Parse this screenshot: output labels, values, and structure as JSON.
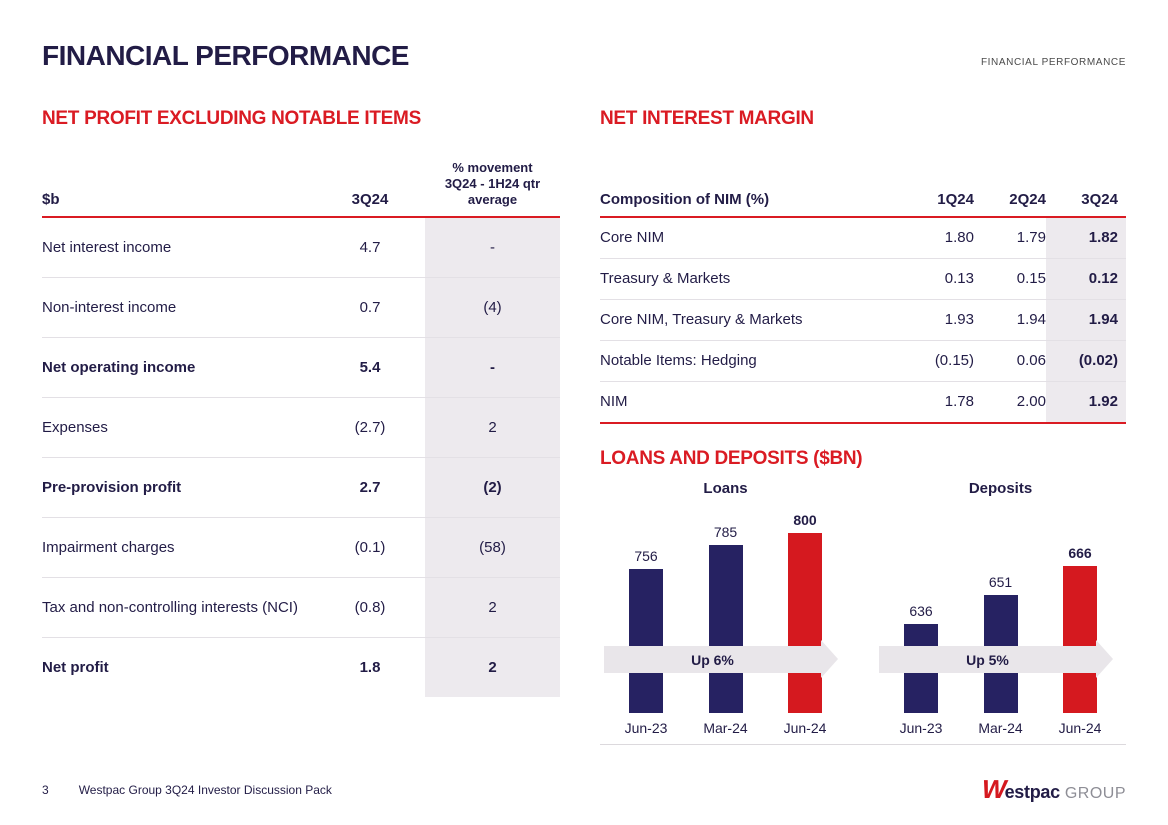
{
  "page": {
    "title": "FINANCIAL PERFORMANCE",
    "header_right": "FINANCIAL PERFORMANCE",
    "footer": {
      "page_number": "3",
      "source": "Westpac Group 3Q24 Investor Discussion Pack",
      "logo_w": "W",
      "logo_name": "estpac",
      "logo_suffix": "GROUP"
    }
  },
  "colors": {
    "accent_red": "#da1b23",
    "navy": "#221c46",
    "bar_navy": "#262262",
    "bar_red": "#d5191f",
    "gray_band": "#edeaee"
  },
  "net_profit": {
    "heading": "NET PROFIT EXCLUDING NOTABLE ITEMS",
    "col1": "$b",
    "col2": "3Q24",
    "col3": "% movement\n3Q24 - 1H24 qtr\naverage",
    "rows": [
      {
        "label": "Net interest income",
        "v1": "4.7",
        "v2": "-"
      },
      {
        "label": "Non-interest income",
        "v1": "0.7",
        "v2": "(4)"
      },
      {
        "label": "Net operating income",
        "v1": "5.4",
        "v2": "-"
      },
      {
        "label": "Expenses",
        "v1": "(2.7)",
        "v2": "2"
      },
      {
        "label": "Pre-provision profit",
        "v1": "2.7",
        "v2": "(2)"
      },
      {
        "label": "Impairment charges",
        "v1": "(0.1)",
        "v2": "(58)"
      },
      {
        "label": "Tax and non-controlling interests (NCI)",
        "v1": "(0.8)",
        "v2": "2"
      },
      {
        "label": "Net profit",
        "v1": "1.8",
        "v2": "2"
      }
    ]
  },
  "nim": {
    "heading": "NET INTEREST MARGIN",
    "col0": "Composition of NIM (%)",
    "col1": "1Q24",
    "col2": "2Q24",
    "col3": "3Q24",
    "rows": [
      {
        "label": "Core NIM",
        "q1": "1.80",
        "q2": "1.79",
        "q3": "1.82"
      },
      {
        "label": "Treasury & Markets",
        "q1": "0.13",
        "q2": "0.15",
        "q3": "0.12"
      },
      {
        "label": "Core NIM, Treasury & Markets",
        "q1": "1.93",
        "q2": "1.94",
        "q3": "1.94"
      },
      {
        "label": "Notable Items: Hedging",
        "q1": "(0.15)",
        "q2": "0.06",
        "q3": "(0.02)"
      },
      {
        "label": "NIM",
        "q1": "1.78",
        "q2": "2.00",
        "q3": "1.92"
      }
    ]
  },
  "loans_deposits_heading": "LOANS AND DEPOSITS ($BN)",
  "chart_data": [
    {
      "type": "bar",
      "title": "Loans",
      "categories": [
        "Jun-23",
        "Mar-24",
        "Jun-24"
      ],
      "values": [
        756,
        785,
        800
      ],
      "bar_colors": [
        "#262262",
        "#262262",
        "#d5191f"
      ],
      "annotation": "Up 6%",
      "ylim": [
        580,
        812
      ],
      "legend": "none",
      "grid": false
    },
    {
      "type": "bar",
      "title": "Deposits",
      "categories": [
        "Jun-23",
        "Mar-24",
        "Jun-24"
      ],
      "values": [
        636,
        651,
        666
      ],
      "bar_colors": [
        "#262262",
        "#262262",
        "#d5191f"
      ],
      "annotation": "Up 5%",
      "ylim": [
        590,
        688
      ],
      "legend": "none",
      "grid": false
    }
  ]
}
